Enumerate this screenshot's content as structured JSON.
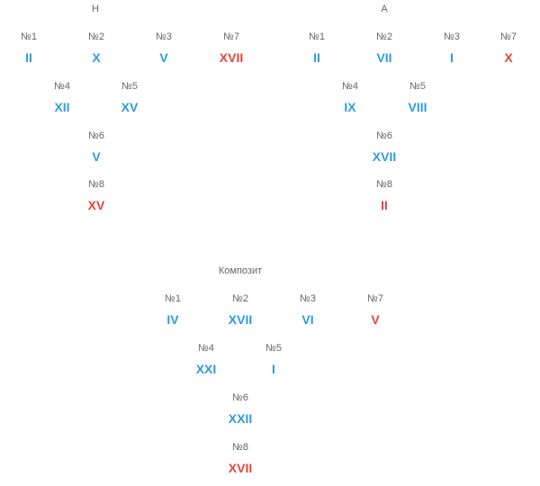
{
  "colors": {
    "blue": "#2e9cdb",
    "red": "#e6453a",
    "label": "#666666"
  },
  "h": {
    "title": "Н",
    "n1": {
      "label": "№1",
      "value": "II"
    },
    "n2": {
      "label": "№2",
      "value": "X"
    },
    "n3": {
      "label": "№3",
      "value": "V"
    },
    "n7": {
      "label": "№7",
      "value": "XVII"
    },
    "n4": {
      "label": "№4",
      "value": "XII"
    },
    "n5": {
      "label": "№5",
      "value": "XV"
    },
    "n6": {
      "label": "№6",
      "value": "V"
    },
    "n8": {
      "label": "№8",
      "value": "XV"
    }
  },
  "a": {
    "title": "А",
    "n1": {
      "label": "№1",
      "value": "II"
    },
    "n2": {
      "label": "№2",
      "value": "VII"
    },
    "n3": {
      "label": "№3",
      "value": "I"
    },
    "n7": {
      "label": "№7",
      "value": "X"
    },
    "n4": {
      "label": "№4",
      "value": "IX"
    },
    "n5": {
      "label": "№5",
      "value": "VIII"
    },
    "n6": {
      "label": "№6",
      "value": "XVII"
    },
    "n8": {
      "label": "№8",
      "value": "II"
    }
  },
  "composite": {
    "title": "Композит",
    "n1": {
      "label": "№1",
      "value": "IV"
    },
    "n2": {
      "label": "№2",
      "value": "XVII"
    },
    "n3": {
      "label": "№3",
      "value": "VI"
    },
    "n7": {
      "label": "№7",
      "value": "V"
    },
    "n4": {
      "label": "№4",
      "value": "XXI"
    },
    "n5": {
      "label": "№5",
      "value": "I"
    },
    "n6": {
      "label": "№6",
      "value": "XXII"
    },
    "n8": {
      "label": "№8",
      "value": "XVII"
    }
  }
}
